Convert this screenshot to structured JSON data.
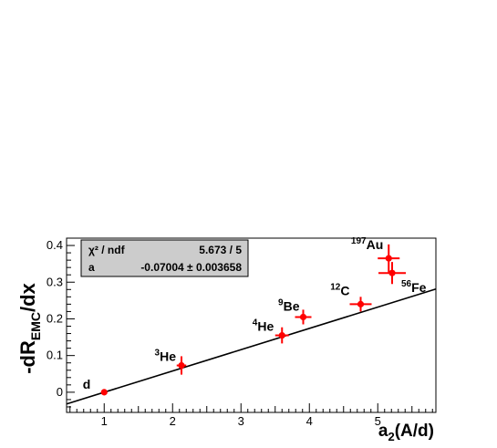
{
  "chart_data": {
    "type": "scatter",
    "xlabel": "a",
    "xlabel_sub": "2",
    "xlabel_suffix": "(A/d)",
    "ylabel": "-dR",
    "ylabel_sub": "EMC",
    "ylabel_suffix": "/dx",
    "xlim": [
      0.45,
      5.85
    ],
    "ylim": [
      -0.055,
      0.42
    ],
    "x_ticks": [
      1,
      2,
      3,
      4,
      5
    ],
    "x_tick_labels": [
      "1",
      "2",
      "3",
      "4",
      "5"
    ],
    "y_ticks": [
      0,
      0.1,
      0.2,
      0.3,
      0.4
    ],
    "y_tick_labels": [
      "0",
      "0.1",
      "0.2",
      "0.3",
      "0.4"
    ],
    "points": [
      {
        "sup": "",
        "name": "d",
        "x": 1.0,
        "y": 0.0,
        "xerr": 0.0,
        "yerr": 0.0
      },
      {
        "sup": "3",
        "name": "He",
        "x": 2.13,
        "y": 0.073,
        "xerr": 0.07,
        "yerr": 0.025
      },
      {
        "sup": "4",
        "name": "He",
        "x": 3.6,
        "y": 0.155,
        "xerr": 0.1,
        "yerr": 0.022
      },
      {
        "sup": "9",
        "name": "Be",
        "x": 3.91,
        "y": 0.205,
        "xerr": 0.12,
        "yerr": 0.02
      },
      {
        "sup": "12",
        "name": "C",
        "x": 4.75,
        "y": 0.24,
        "xerr": 0.16,
        "yerr": 0.02
      },
      {
        "sup": "197",
        "name": "Au",
        "x": 5.16,
        "y": 0.365,
        "xerr": 0.16,
        "yerr": 0.038
      },
      {
        "sup": "56",
        "name": "Fe",
        "x": 5.21,
        "y": 0.325,
        "xerr": 0.2,
        "yerr": 0.03
      }
    ],
    "fit": {
      "slope": 0.058,
      "intercept": -0.058
    },
    "stats": {
      "row1_label": "χ² / ndf",
      "row1_value": "5.673 / 5",
      "row2_label": "a",
      "row2_value": "-0.07004 ± 0.003658"
    },
    "colors": {
      "points": "#ff0000",
      "fit": "#000000",
      "stats_box": "#cccccc"
    }
  }
}
